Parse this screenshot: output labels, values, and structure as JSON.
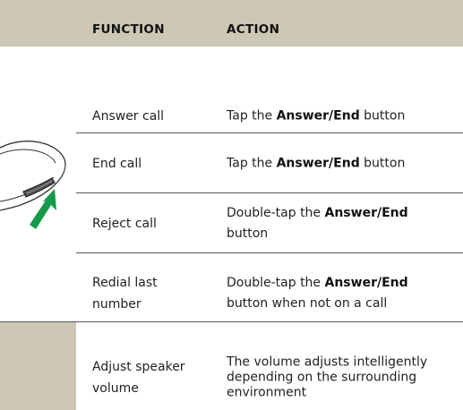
{
  "table": {
    "columns": [
      "FUNCTION",
      "ACTION"
    ],
    "rows": [
      {
        "function": [
          "Answer call"
        ],
        "action": [
          [
            {
              "text": "Tap the "
            },
            {
              "text": "Answer/End",
              "bold": true
            },
            {
              "text": " button"
            }
          ]
        ]
      },
      {
        "function": [
          "End call"
        ],
        "action": [
          [
            {
              "text": "Tap the "
            },
            {
              "text": "Answer/End",
              "bold": true
            },
            {
              "text": " button"
            }
          ]
        ]
      },
      {
        "function": [
          "Reject call"
        ],
        "action": [
          [
            {
              "text": "Double-tap the "
            },
            {
              "text": "Answer/End",
              "bold": true
            }
          ],
          [
            {
              "text": "button"
            }
          ]
        ]
      },
      {
        "function": [
          "Redial last",
          "number"
        ],
        "action": [
          [
            {
              "text": "Double-tap the "
            },
            {
              "text": "Answer/End",
              "bold": true
            }
          ],
          [
            {
              "text": "button when not on a call"
            }
          ]
        ]
      },
      {
        "function": [
          "Adjust speaker",
          "volume"
        ],
        "action": [
          [
            {
              "text": "The volume adjusts intelligently"
            }
          ],
          [
            {
              "text": "depending on the surrounding"
            }
          ],
          [
            {
              "text": "environment"
            }
          ]
        ]
      }
    ]
  }
}
